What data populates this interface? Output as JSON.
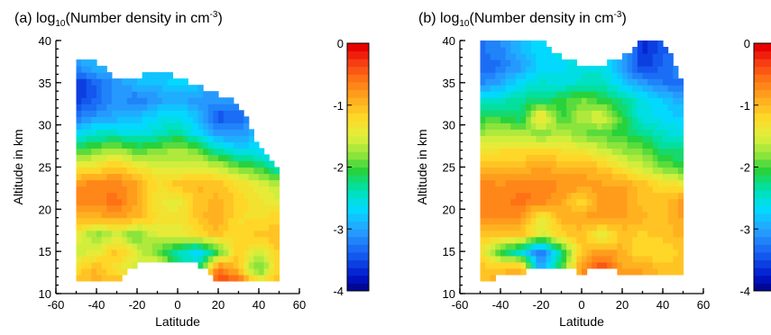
{
  "chart_data": [
    {
      "type": "heatmap",
      "panel_label": "(a)",
      "title_prefix": "log",
      "title_sub": "10",
      "title_main": "(Number density in cm",
      "title_sup": "-3",
      "title_close": ")",
      "xlabel": "Latitude",
      "ylabel": "Altitude in km",
      "xlim": [
        -60,
        60
      ],
      "ylim": [
        10,
        40
      ],
      "xticks": [
        "-60",
        "-40",
        "-20",
        "0",
        "20",
        "40",
        "60"
      ],
      "yticks": [
        "10",
        "15",
        "20",
        "25",
        "30",
        "35",
        "40"
      ],
      "colorbar": {
        "range": [
          -4,
          0
        ],
        "ticks": [
          "0",
          "-1",
          "-2",
          "-3",
          "-4"
        ]
      },
      "x": [
        -50,
        -40,
        -30,
        -20,
        -10,
        0,
        10,
        20,
        30,
        40,
        50
      ],
      "y": [
        11,
        13,
        15,
        17,
        19,
        21,
        23,
        25,
        27,
        29,
        31,
        33,
        35,
        37,
        39
      ],
      "top_altitude": [
        37.5,
        37.5,
        35.5,
        35.5,
        36.5,
        35.5,
        34.5,
        33.5,
        32.5,
        27.5,
        24.5
      ],
      "bottom_altitude": [
        11.5,
        11.5,
        11.5,
        13.5,
        13.5,
        13.5,
        13.5,
        11.5,
        11.5,
        11.5,
        11.5
      ],
      "values": [
        [
          -0.9,
          -0.9,
          -0.8,
          -0.8,
          -1.0,
          -0.9,
          -1.0,
          -0.2,
          -0.2,
          -0.9,
          -0.9
        ],
        [
          -1.2,
          -0.9,
          -1.3,
          -1.5,
          -1.0,
          -2.2,
          -2.3,
          -0.5,
          -1.0,
          -2.0,
          -1.0
        ],
        [
          -1.5,
          -1.4,
          -1.0,
          -1.4,
          -1.9,
          -2.3,
          -2.7,
          -2.0,
          -1.0,
          -1.5,
          -1.0
        ],
        [
          -1.3,
          -1.8,
          -1.5,
          -1.9,
          -1.4,
          -1.4,
          -1.2,
          -1.0,
          -1.2,
          -1.0,
          -1.0
        ],
        [
          -0.9,
          -0.9,
          -0.8,
          -0.9,
          -1.2,
          -1.3,
          -1.0,
          -0.8,
          -1.2,
          -1.2,
          -1.1
        ],
        [
          -0.6,
          -0.6,
          -0.5,
          -0.8,
          -1.3,
          -1.4,
          -1.0,
          -0.9,
          -1.1,
          -1.3,
          -1.4
        ],
        [
          -0.7,
          -0.6,
          -0.6,
          -0.8,
          -1.2,
          -1.0,
          -0.9,
          -1.0,
          -1.2,
          -1.4,
          -1.6
        ],
        [
          -1.3,
          -1.2,
          -1.0,
          -1.3,
          -1.4,
          -1.5,
          -1.4,
          -1.5,
          -1.8,
          -2.0,
          -2.4
        ],
        [
          -2.0,
          -1.8,
          -1.6,
          -1.9,
          -1.8,
          -1.6,
          -1.8,
          -2.3,
          -2.6,
          -2.6,
          -2.8
        ],
        [
          -2.6,
          -2.4,
          -2.4,
          -2.5,
          -2.4,
          -2.2,
          -2.6,
          -3.0,
          -3.0,
          -2.8,
          -2.8
        ],
        [
          -3.2,
          -3.0,
          -2.9,
          -2.8,
          -2.6,
          -2.5,
          -2.8,
          -3.4,
          -3.3,
          -3.0,
          -3.0
        ],
        [
          -3.5,
          -3.3,
          -3.0,
          -3.2,
          -3.0,
          -2.9,
          -3.0,
          -3.0,
          -3.0,
          -3.0,
          -3.0
        ],
        [
          -3.6,
          -3.3,
          -3.0,
          -2.8,
          -2.8,
          -2.6,
          -2.7,
          -3.0,
          -3.0,
          -3.0,
          -3.0
        ],
        [
          -3.0,
          -2.8,
          -2.7,
          -2.7,
          -2.8,
          -2.7,
          -2.8,
          -3.0,
          -3.0,
          -3.0,
          -3.0
        ],
        [
          -3.0,
          -2.8,
          -2.7,
          -2.7,
          -2.8,
          -2.7,
          -2.8,
          -3.0,
          -3.0,
          -3.0,
          -3.0
        ]
      ]
    },
    {
      "type": "heatmap",
      "panel_label": "(b)",
      "title_prefix": "log",
      "title_sub": "10",
      "title_main": "(Number density in cm",
      "title_sup": "-3",
      "title_close": ")",
      "xlabel": "Latitude",
      "ylabel": "Altitude in km",
      "xlim": [
        -60,
        60
      ],
      "ylim": [
        10,
        40
      ],
      "xticks": [
        "-60",
        "-40",
        "-20",
        "0",
        "20",
        "40",
        "60"
      ],
      "yticks": [
        "10",
        "15",
        "20",
        "25",
        "30",
        "35",
        "40"
      ],
      "colorbar": {
        "range": [
          -4,
          0
        ],
        "ticks": [
          "0",
          "-1",
          "-2",
          "-3",
          "-4"
        ]
      },
      "x": [
        -50,
        -40,
        -30,
        -20,
        -10,
        0,
        10,
        20,
        30,
        40,
        50
      ],
      "y": [
        11,
        13,
        15,
        17,
        19,
        21,
        23,
        25,
        27,
        29,
        31,
        33,
        35,
        37,
        39
      ],
      "top_altitude": [
        40,
        40,
        40,
        40,
        38,
        37,
        37,
        38,
        40,
        40,
        35
      ],
      "bottom_altitude": [
        11.5,
        12.0,
        12.5,
        13.0,
        13.0,
        12.5,
        13.5,
        12.5,
        12.5,
        12.5,
        12.5
      ],
      "values": [
        [
          -1.0,
          -0.8,
          -0.8,
          -1.0,
          -0.7,
          -0.6,
          -0.6,
          -0.8,
          -0.8,
          -0.8,
          -0.8
        ],
        [
          -1.0,
          -1.0,
          -0.8,
          -3.0,
          -2.0,
          -0.7,
          -0.3,
          -0.8,
          -0.8,
          -1.0,
          -1.0
        ],
        [
          -1.2,
          -2.0,
          -2.5,
          -3.3,
          -2.2,
          -1.0,
          -0.7,
          -0.9,
          -1.2,
          -1.2,
          -1.0
        ],
        [
          -1.0,
          -1.0,
          -1.0,
          -1.5,
          -1.1,
          -1.0,
          -1.5,
          -1.0,
          -1.1,
          -1.0,
          -0.9
        ],
        [
          -0.7,
          -0.7,
          -0.7,
          -1.4,
          -0.9,
          -0.8,
          -0.7,
          -0.8,
          -0.9,
          -1.0,
          -0.8
        ],
        [
          -0.6,
          -0.6,
          -0.5,
          -0.6,
          -0.8,
          -1.2,
          -0.7,
          -0.7,
          -1.0,
          -1.0,
          -0.7
        ],
        [
          -0.6,
          -0.7,
          -0.6,
          -0.6,
          -0.7,
          -0.7,
          -0.8,
          -0.8,
          -1.0,
          -1.2,
          -1.3
        ],
        [
          -1.0,
          -0.9,
          -0.9,
          -0.8,
          -0.9,
          -0.9,
          -1.0,
          -1.3,
          -1.5,
          -1.8,
          -2.0
        ],
        [
          -1.3,
          -1.2,
          -1.2,
          -1.2,
          -1.2,
          -1.3,
          -1.5,
          -1.7,
          -1.8,
          -2.2,
          -2.2
        ],
        [
          -1.7,
          -1.6,
          -1.6,
          -1.8,
          -1.6,
          -1.8,
          -1.9,
          -2.0,
          -2.2,
          -2.4,
          -2.5
        ],
        [
          -2.0,
          -2.0,
          -2.2,
          -1.1,
          -2.0,
          -1.6,
          -1.4,
          -2.0,
          -2.5,
          -2.6,
          -2.7
        ],
        [
          -2.4,
          -2.4,
          -2.2,
          -2.2,
          -2.0,
          -1.8,
          -2.0,
          -2.2,
          -2.5,
          -2.7,
          -2.9
        ],
        [
          -3.1,
          -2.9,
          -2.6,
          -2.4,
          -2.5,
          -2.4,
          -2.3,
          -2.7,
          -3.0,
          -3.2,
          -3.2
        ],
        [
          -3.3,
          -3.2,
          -3.0,
          -2.6,
          -2.6,
          -2.5,
          -2.5,
          -3.0,
          -3.5,
          -3.3,
          -3.0
        ],
        [
          -3.2,
          -3.1,
          -2.8,
          -2.6,
          -2.5,
          -2.4,
          -2.4,
          -2.8,
          -3.6,
          -3.4,
          -3.0
        ]
      ]
    }
  ]
}
